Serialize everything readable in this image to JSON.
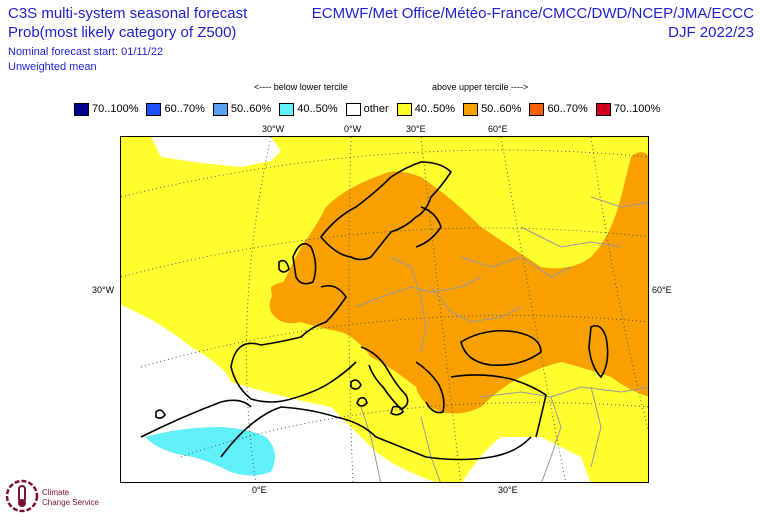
{
  "header": {
    "title_left_1": "C3S multi-system seasonal forecast",
    "title_left_2": "Prob(most likely category of Z500)",
    "note_1": "Nominal forecast start: 01/11/22",
    "note_2": "Unweighted mean",
    "systems": "ECMWF/Met Office/Météo-France/CMCC/DWD/NCEP/JMA/ECCC",
    "season": "DJF 2022/23"
  },
  "legend": {
    "below_header": "<---- below lower tercile",
    "above_header": "above upper tercile ---->",
    "items": [
      {
        "label": "70..100%",
        "color": "#00008c"
      },
      {
        "label": "60..70%",
        "color": "#2050ff"
      },
      {
        "label": "50..60%",
        "color": "#58a0f8"
      },
      {
        "label": "40..50%",
        "color": "#60f0f8"
      },
      {
        "label": "other",
        "color": "#ffffff"
      },
      {
        "label": "40..50%",
        "color": "#ffff30"
      },
      {
        "label": "50..60%",
        "color": "#f8a000"
      },
      {
        "label": "60..70%",
        "color": "#f86000"
      },
      {
        "label": "70..100%",
        "color": "#d00020"
      }
    ]
  },
  "axes": {
    "top": [
      "30°W",
      "0°W",
      "30°E",
      "60°E"
    ],
    "left": "30°W",
    "right": "60°E",
    "bottom": [
      "0°E",
      "30°E"
    ]
  },
  "logo": {
    "line1": "Climate",
    "line2": "Change Service"
  }
}
